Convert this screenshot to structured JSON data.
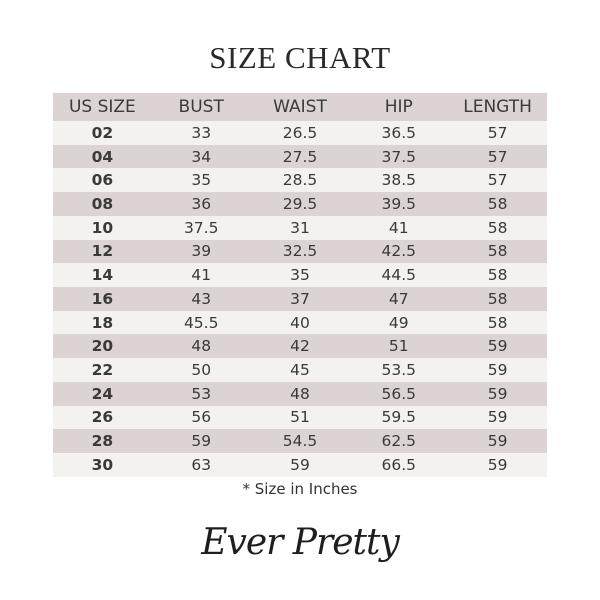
{
  "title": "SIZE CHART",
  "table": {
    "headers": [
      "US SIZE",
      "BUST",
      "WAIST",
      "HIP",
      "LENGTH"
    ],
    "rows": [
      [
        "02",
        "33",
        "26.5",
        "36.5",
        "57"
      ],
      [
        "04",
        "34",
        "27.5",
        "37.5",
        "57"
      ],
      [
        "06",
        "35",
        "28.5",
        "38.5",
        "57"
      ],
      [
        "08",
        "36",
        "29.5",
        "39.5",
        "58"
      ],
      [
        "10",
        "37.5",
        "31",
        "41",
        "58"
      ],
      [
        "12",
        "39",
        "32.5",
        "42.5",
        "58"
      ],
      [
        "14",
        "41",
        "35",
        "44.5",
        "58"
      ],
      [
        "16",
        "43",
        "37",
        "47",
        "58"
      ],
      [
        "18",
        "45.5",
        "40",
        "49",
        "58"
      ],
      [
        "20",
        "48",
        "42",
        "51",
        "59"
      ],
      [
        "22",
        "50",
        "45",
        "53.5",
        "59"
      ],
      [
        "24",
        "53",
        "48",
        "56.5",
        "59"
      ],
      [
        "26",
        "56",
        "51",
        "59.5",
        "59"
      ],
      [
        "28",
        "59",
        "54.5",
        "62.5",
        "59"
      ],
      [
        "30",
        "63",
        "59",
        "66.5",
        "59"
      ]
    ]
  },
  "note": "* Size in Inches",
  "logo": "Ever Pretty",
  "colors": {
    "header_row": "#dcd4d2",
    "light_row": "#f4f2ee",
    "dark_row": "#dcd4d2"
  }
}
